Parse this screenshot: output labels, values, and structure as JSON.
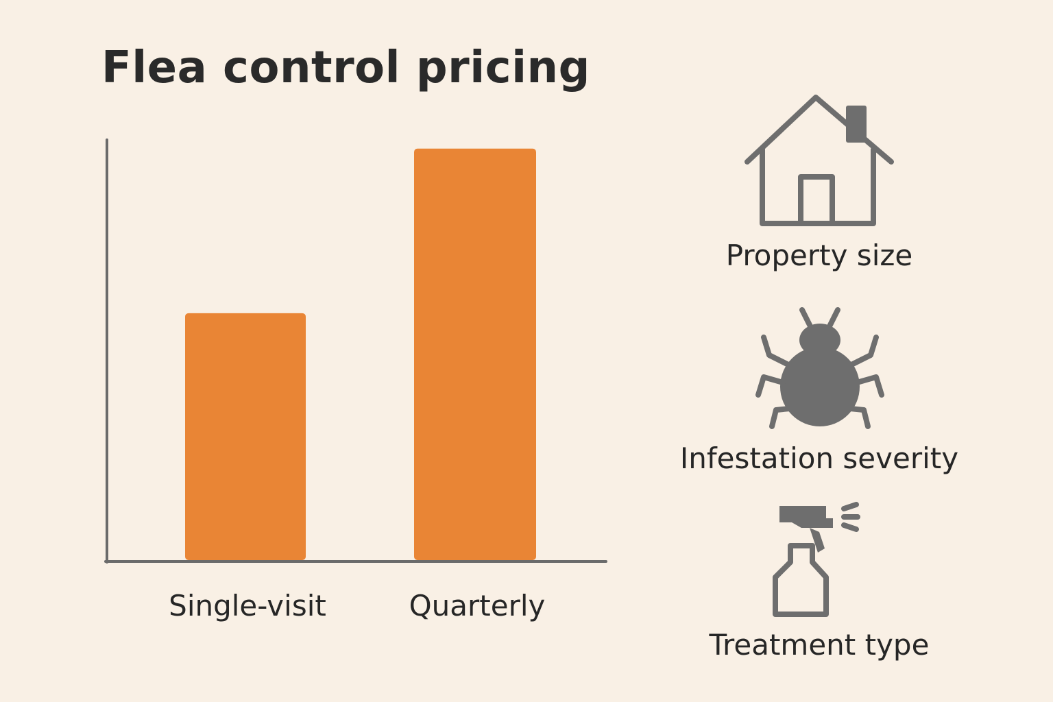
{
  "title": "Flea control pricing",
  "colors": {
    "bar": "#e98535",
    "axis": "#6b6b6b",
    "icon": "#6e6e6e",
    "background": "#f9f0e5"
  },
  "chart_data": {
    "type": "bar",
    "title": "Flea control pricing",
    "xlabel": "",
    "ylabel": "",
    "categories": [
      "Single-visit",
      "Quarterly"
    ],
    "values": [
      54,
      90
    ],
    "ylim": [
      0,
      100
    ],
    "grid": false,
    "legend": "none"
  },
  "factors": [
    {
      "label": "Property size",
      "icon": "house-icon"
    },
    {
      "label": "Infestation severity",
      "icon": "bug-icon"
    },
    {
      "label": "Treatment type",
      "icon": "spray-bottle-icon"
    }
  ]
}
